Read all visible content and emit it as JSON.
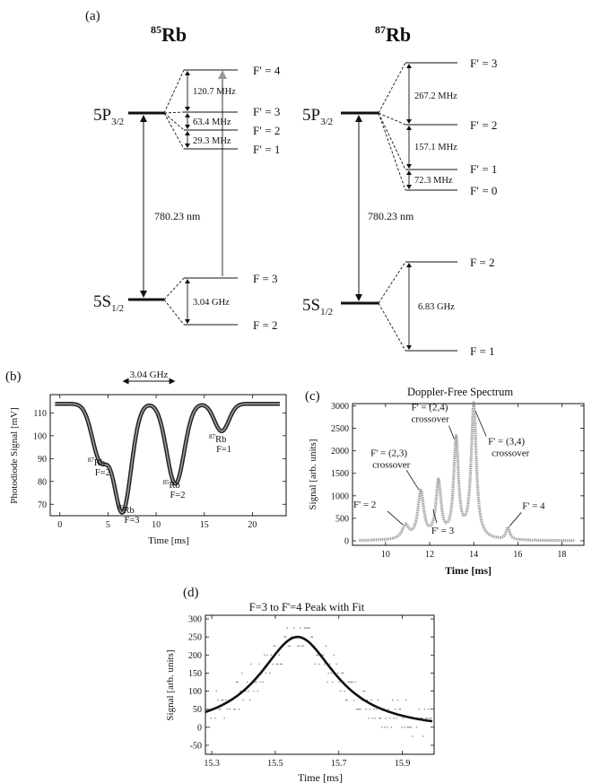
{
  "panel_labels": {
    "a": "(a)",
    "b": "(b)",
    "c": "(c)",
    "d": "(d)"
  },
  "energy_levels": [
    {
      "isotope_mass": "85",
      "isotope_symbol": "Rb",
      "excited_state": {
        "label": "5P",
        "sub": "3/2"
      },
      "ground_state": {
        "label": "5S",
        "sub": "1/2"
      },
      "excited_sublevels": [
        "F′ = 4",
        "F′ = 3",
        "F′ = 2",
        "F′ = 1"
      ],
      "excited_splittings": [
        "120.7 MHz",
        "63.4 MHz",
        "29.3 MHz"
      ],
      "ground_sublevels": [
        "F = 3",
        "F = 2"
      ],
      "ground_splitting": "3.04  GHz",
      "transition_wavelength": "780.23 nm"
    },
    {
      "isotope_mass": "87",
      "isotope_symbol": "Rb",
      "excited_state": {
        "label": "5P",
        "sub": "3/2"
      },
      "ground_state": {
        "label": "5S",
        "sub": "1/2"
      },
      "excited_sublevels": [
        "F′ = 3",
        "F′ = 2",
        "F′ = 1",
        "F′ = 0"
      ],
      "excited_splittings": [
        "267.2  MHz",
        "157.1  MHz",
        "72.3  MHz"
      ],
      "ground_sublevels": [
        "F = 2",
        "F = 1"
      ],
      "ground_splitting": "6.83 GHz",
      "transition_wavelength": "780.23 nm"
    }
  ],
  "chart_data": [
    {
      "type": "line",
      "title": "",
      "xlabel": "Time [ms]",
      "ylabel": "Photodiode Signal [mV]",
      "xlim": [
        -1,
        23.5
      ],
      "ylim": [
        65,
        118
      ],
      "xticks": [
        0,
        5,
        10,
        15,
        20
      ],
      "yticks": [
        70,
        80,
        90,
        100,
        110
      ],
      "baseline": 114,
      "dips": [
        {
          "center": 4.2,
          "depth": 24,
          "width": 0.85
        },
        {
          "center": 6.5,
          "depth": 47,
          "width": 0.9
        },
        {
          "center": 12.0,
          "depth": 35,
          "width": 0.9
        },
        {
          "center": 16.8,
          "depth": 12,
          "width": 0.75
        }
      ],
      "peak_labels": [
        {
          "mass": "87",
          "symbol": "Rb",
          "line2": "F=2",
          "x": 4.2
        },
        {
          "mass": "85",
          "symbol": "Rb",
          "line2": "F=3",
          "x": 6.5
        },
        {
          "mass": "85",
          "symbol": "Rb",
          "line2": "F=2",
          "x": 12.0
        },
        {
          "mass": "87",
          "symbol": "Rb",
          "line2": "F=1",
          "x": 16.8
        }
      ],
      "annotation": {
        "text": "3.04 GHz",
        "from": 6.5,
        "to": 12.0
      }
    },
    {
      "type": "scatter",
      "title": "Doppler-Free Spectrum",
      "xlabel": "Time [ms]",
      "ylabel": "Signal [arb. units]",
      "xlim": [
        8.5,
        19
      ],
      "ylim": [
        -100,
        3050
      ],
      "xticks": [
        10,
        12,
        14,
        16,
        18
      ],
      "yticks": [
        0,
        500,
        1000,
        1500,
        2000,
        2500,
        3000
      ],
      "baseline": 0,
      "peaks": [
        {
          "x": 10.9,
          "y": 300,
          "width": 0.18
        },
        {
          "x": 11.6,
          "y": 1050,
          "width": 0.16
        },
        {
          "x": 12.4,
          "y": 1250,
          "width": 0.14
        },
        {
          "x": 13.2,
          "y": 2200,
          "width": 0.13
        },
        {
          "x": 14.0,
          "y": 3000,
          "width": 0.14
        },
        {
          "x": 15.55,
          "y": 270,
          "width": 0.1
        }
      ],
      "annotations": [
        {
          "text": "F' = 2"
        },
        {
          "text": "F' = (2,3)",
          "line2": "crossover"
        },
        {
          "text": "F' = 3"
        },
        {
          "text": "F' = (2,4)",
          "line2": "crossover"
        },
        {
          "text": "F' = (3,4)",
          "line2": "crossover"
        },
        {
          "text": "F' = 4"
        }
      ]
    },
    {
      "type": "scatter",
      "title": "F=3 to F'=4 Peak with Fit",
      "xlabel": "Time [ms]",
      "ylabel": "Signal [arb. units]",
      "xlim": [
        15.28,
        16.0
      ],
      "ylim": [
        -75,
        310
      ],
      "xticks": [
        15.3,
        15.5,
        15.7,
        15.9
      ],
      "yticks": [
        -50,
        0,
        50,
        100,
        150,
        200,
        250,
        300
      ],
      "fit": {
        "model": "lorentzian",
        "center": 15.57,
        "amplitude": 262,
        "hwhm": 0.148,
        "offset": -12
      },
      "data_levels": [
        -50,
        -25,
        0,
        25,
        50,
        75,
        100,
        125,
        150,
        175,
        200,
        225,
        250,
        275,
        300
      ]
    }
  ]
}
